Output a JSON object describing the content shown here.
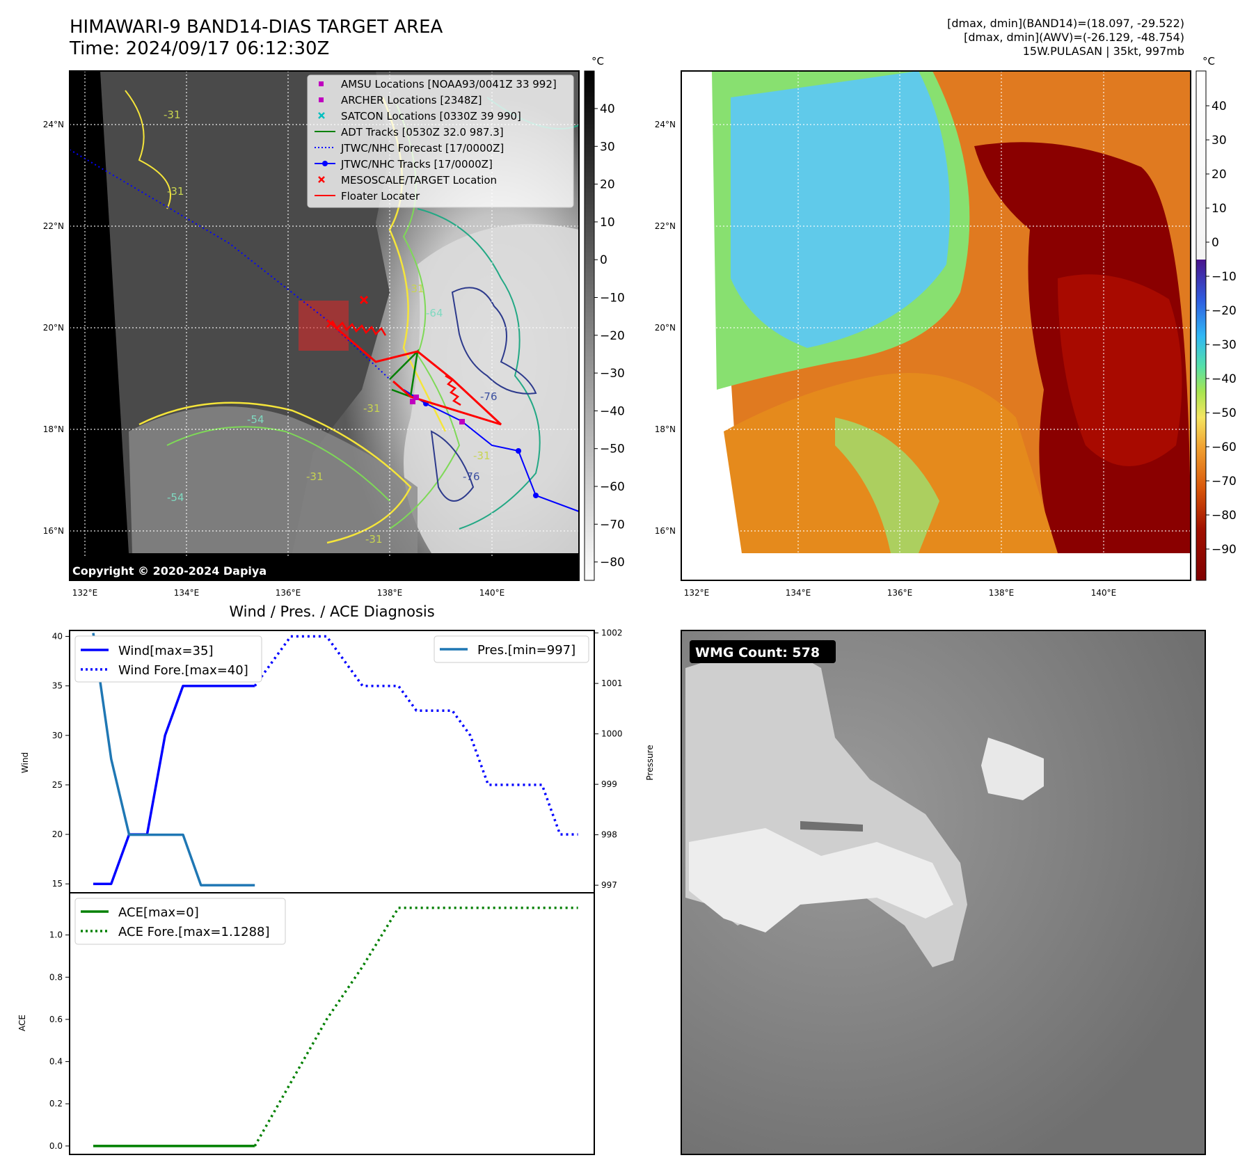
{
  "header": {
    "title_line1": "HIMAWARI-9 BAND14-DIAS TARGET AREA",
    "title_line2": "Time: 2024/09/17 06:12:30Z",
    "info_line1": "[dmax, dmin](BAND14)=(18.097, -29.522)",
    "info_line2": "[dmax, dmin](AWV)=(-26.129, -48.754)",
    "info_line3": "15W.PULASAN | 35kt, 997mb"
  },
  "map_common": {
    "lon_ticks": [
      "132°E",
      "134°E",
      "136°E",
      "138°E",
      "140°E"
    ],
    "lat_ticks": [
      "24°N",
      "22°N",
      "20°N",
      "18°N",
      "16°N"
    ],
    "unit": "°C"
  },
  "panel_ir": {
    "colorbar_ticks": [
      "40",
      "30",
      "20",
      "10",
      "0",
      "−10",
      "−20",
      "−30",
      "−40",
      "−50",
      "−60",
      "−70",
      "−80"
    ],
    "copyright": "Copyright © 2020-2024 Dapiya",
    "contour_labels": [
      "-31",
      "-54",
      "-31",
      "-31",
      "-31",
      "-54",
      "-31",
      "-64",
      "-76",
      "-76",
      "-31",
      "-31"
    ],
    "legend": [
      {
        "label": "AMSU Locations [NOAA93/0041Z 33 992]",
        "marker": "square",
        "color": "#bf00bf"
      },
      {
        "label": "ARCHER Locations [2348Z]",
        "marker": "square",
        "color": "#bf00bf"
      },
      {
        "label": "SATCON Locations [0330Z 39 990]",
        "marker": "x",
        "color": "#00bfbf"
      },
      {
        "label": "ADT Tracks [0530Z 32.0 987.3]",
        "marker": "line",
        "color": "#008000"
      },
      {
        "label": "JTWC/NHC Forecast [17/0000Z]",
        "marker": "dotted",
        "color": "#0000ff"
      },
      {
        "label": "JTWC/NHC Tracks [17/0000Z]",
        "marker": "line-dot",
        "color": "#0000ff"
      },
      {
        "label": "MESOSCALE/TARGET Location",
        "marker": "x",
        "color": "#ff0000"
      },
      {
        "label": "Floater Locater",
        "marker": "line",
        "color": "#ff0000"
      }
    ]
  },
  "panel_awv": {
    "colorbar_ticks": [
      "40",
      "30",
      "20",
      "10",
      "0",
      "−10",
      "−20",
      "−30",
      "−40",
      "−50",
      "−60",
      "−70",
      "−80",
      "−90"
    ]
  },
  "panel_wmg": {
    "badge": "WMG Count: 578"
  },
  "chart_data": [
    {
      "type": "line",
      "title": "Wind / Pres. / ACE Diagnosis",
      "ylabel": "Wind",
      "y2label": "Pressure",
      "ylim": [
        14.1,
        40.6
      ],
      "y2lim": [
        996.85,
        1002.05
      ],
      "yticks": [
        "40",
        "35",
        "30",
        "25",
        "20",
        "15"
      ],
      "y2ticks": [
        "1002",
        "1001",
        "1000",
        "999",
        "998",
        "997"
      ],
      "series": [
        {
          "name": "Wind[max=35]",
          "axis": "left",
          "style": "solid",
          "color": "#0000ff",
          "x": [
            0,
            1,
            2,
            3,
            4,
            5,
            6,
            7,
            8,
            9
          ],
          "y": [
            15,
            15,
            20,
            20,
            30,
            35,
            35,
            35,
            35,
            35
          ]
        },
        {
          "name": "Wind Fore.[max=40]",
          "axis": "left",
          "style": "dotted",
          "color": "#0000ff",
          "x": [
            9,
            10,
            11,
            12,
            13,
            14,
            15,
            16,
            17,
            18,
            19,
            20,
            21,
            22,
            23,
            24,
            25,
            26,
            27
          ],
          "y": [
            35,
            37.5,
            40,
            40,
            40,
            37.5,
            35,
            35,
            35,
            32.5,
            32.5,
            32.5,
            30,
            25,
            25,
            25,
            25,
            20,
            20
          ]
        },
        {
          "name": "Pres.[min=997]",
          "axis": "right",
          "style": "solid",
          "color": "#1f77b4",
          "x": [
            0,
            1,
            2,
            3,
            4,
            5,
            6,
            7,
            8,
            9
          ],
          "y": [
            1002,
            999.5,
            998,
            998,
            998,
            998,
            997,
            997,
            997,
            997
          ]
        }
      ]
    },
    {
      "type": "line",
      "ylabel": "ACE",
      "ylim": [
        -0.04,
        1.2
      ],
      "yticks": [
        "1.0",
        "0.8",
        "0.6",
        "0.4",
        "0.2",
        "0.0"
      ],
      "series": [
        {
          "name": "ACE[max=0]",
          "style": "solid",
          "color": "#008000",
          "x": [
            0,
            9
          ],
          "y": [
            0,
            0
          ]
        },
        {
          "name": "ACE Fore.[max=1.1288]",
          "style": "dotted",
          "color": "#008000",
          "x": [
            9,
            11,
            13,
            15,
            17,
            19,
            27
          ],
          "y": [
            0,
            0.3,
            0.6,
            0.85,
            1.1288,
            1.1288,
            1.1288
          ]
        }
      ]
    }
  ]
}
